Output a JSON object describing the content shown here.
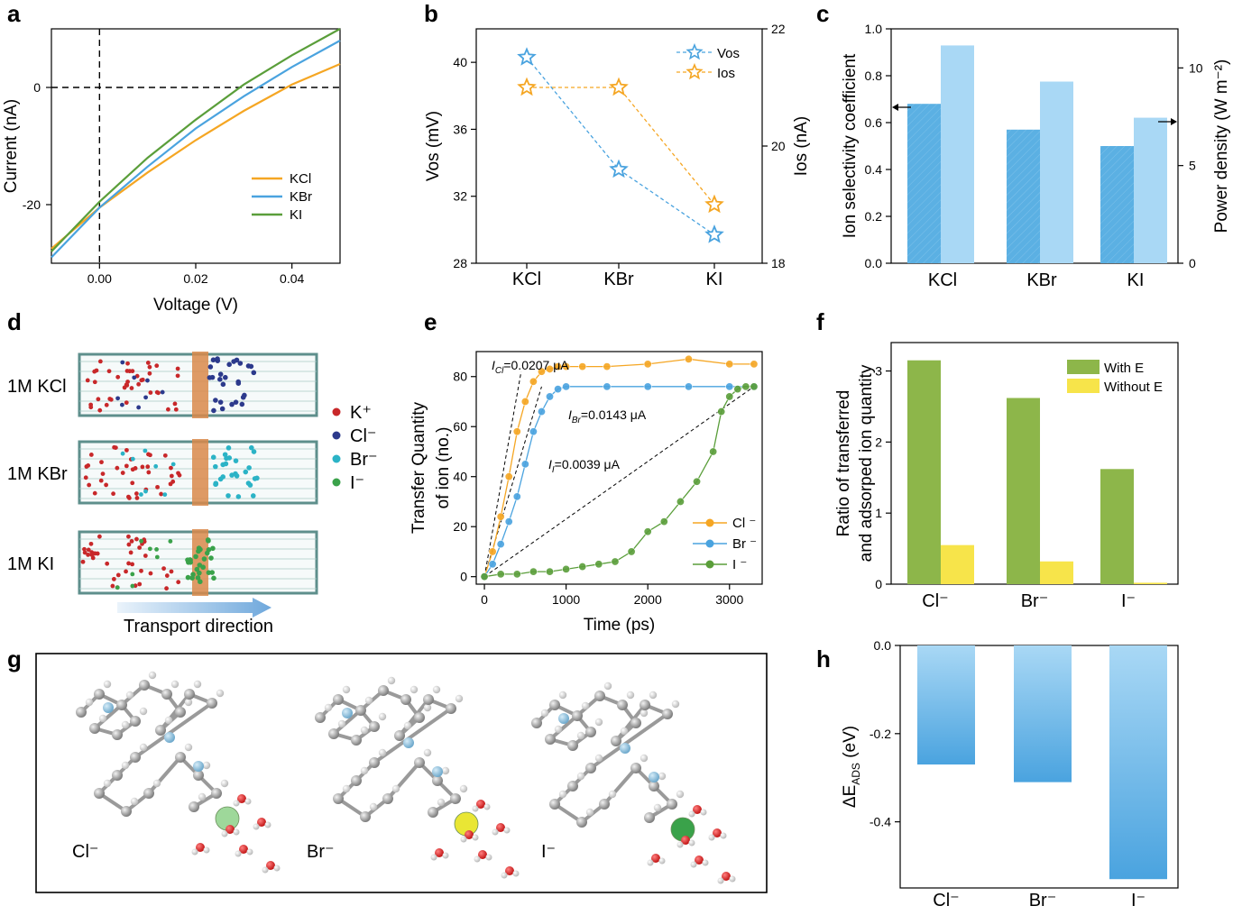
{
  "panel_labels": [
    "a",
    "b",
    "c",
    "d",
    "e",
    "f",
    "g",
    "h"
  ],
  "chart_data": [
    {
      "panel": "a",
      "type": "line",
      "xlabel": "Voltage (V)",
      "ylabel": "Current (nA)",
      "xlim": [
        -0.01,
        0.05
      ],
      "ylim": [
        -30,
        10
      ],
      "xticks": [
        "0.00",
        "0.02",
        "0.04"
      ],
      "yticks": [
        "-20",
        "0"
      ],
      "series": [
        {
          "name": "KCl",
          "color": "#f5a623",
          "x": [
            -0.01,
            0,
            0.01,
            0.02,
            0.03,
            0.04,
            0.05
          ],
          "y": [
            -27.5,
            -20.5,
            -14.5,
            -9,
            -4,
            0.5,
            4
          ]
        },
        {
          "name": "KBr",
          "color": "#4aa3df",
          "x": [
            -0.01,
            0,
            0.01,
            0.02,
            0.03,
            0.04,
            0.05
          ],
          "y": [
            -29,
            -20.5,
            -13.5,
            -7,
            -1.5,
            3.5,
            8
          ]
        },
        {
          "name": "KI",
          "color": "#5a9e3a",
          "x": [
            -0.01,
            0,
            0.01,
            0.02,
            0.03,
            0.04,
            0.05
          ],
          "y": [
            -28,
            -19.5,
            -12,
            -5.5,
            0.5,
            5.5,
            10
          ]
        }
      ]
    },
    {
      "panel": "b",
      "type": "line",
      "categories": [
        "KCl",
        "KBr",
        "KI"
      ],
      "ylabel": "Vos (mV)",
      "y2label": "Ios (nA)",
      "ylim": [
        28,
        42
      ],
      "y2lim": [
        18,
        22
      ],
      "yticks": [
        "28",
        "32",
        "36",
        "40"
      ],
      "y2ticks": [
        "18",
        "20",
        "22"
      ],
      "series": [
        {
          "name": "Vos",
          "axis": "left",
          "color": "#4aa3df",
          "values": [
            40.3,
            33.6,
            29.7
          ]
        },
        {
          "name": "Ios",
          "axis": "right",
          "color": "#f5a623",
          "values": [
            21.0,
            21.0,
            19.0
          ]
        }
      ]
    },
    {
      "panel": "c",
      "type": "bar",
      "categories": [
        "KCl",
        "KBr",
        "KI"
      ],
      "ylabel": "Ion selectivity coefficient",
      "y2label": "Power density (W m⁻²)",
      "ylim": [
        0,
        1.0
      ],
      "y2lim": [
        0,
        12
      ],
      "yticks": [
        "0.0",
        "0.2",
        "0.4",
        "0.6",
        "0.8",
        "1.0"
      ],
      "y2ticks": [
        "0",
        "5",
        "10"
      ],
      "series": [
        {
          "name": "Ion selectivity coefficient",
          "axis": "left",
          "color": "#5bb0e3",
          "values": [
            0.68,
            0.57,
            0.5
          ]
        },
        {
          "name": "Power density",
          "axis": "right",
          "color": "#a9d8f5",
          "values": [
            11.15,
            9.3,
            7.45
          ]
        }
      ]
    },
    {
      "panel": "e",
      "type": "scatter",
      "xlabel": "Time (ps)",
      "ylabel": "Transfer Quantity of ion (no.)",
      "xlim": [
        -100,
        3400
      ],
      "ylim": [
        -3,
        90
      ],
      "xticks": [
        "0",
        "1000",
        "2000",
        "3000"
      ],
      "yticks": [
        "0",
        "20",
        "40",
        "60",
        "80"
      ],
      "annotations": [
        "Cl",
        "=0.0207 μA",
        "Br",
        "=0.0143 μA",
        "I",
        "=0.0039 μA"
      ],
      "series": [
        {
          "name": "Cl ⁻",
          "color": "#f5a623",
          "x": [
            0,
            100,
            200,
            300,
            400,
            500,
            600,
            700,
            800,
            900,
            1000,
            1200,
            1500,
            2000,
            2500,
            3000,
            3300
          ],
          "y": [
            0,
            10,
            24,
            40,
            58,
            70,
            78,
            82,
            83,
            84,
            84,
            84,
            84,
            85,
            87,
            85,
            85
          ]
        },
        {
          "name": "Br ⁻",
          "color": "#4aa3df",
          "x": [
            0,
            100,
            200,
            300,
            400,
            500,
            600,
            700,
            800,
            900,
            1000,
            1500,
            2000,
            2500,
            3000,
            3300
          ],
          "y": [
            0,
            5,
            13,
            22,
            32,
            45,
            58,
            66,
            72,
            75,
            76,
            76,
            76,
            76,
            76,
            76
          ]
        },
        {
          "name": "I ⁻",
          "color": "#5a9e3a",
          "x": [
            0,
            200,
            400,
            600,
            800,
            1000,
            1200,
            1400,
            1600,
            1800,
            2000,
            2200,
            2400,
            2600,
            2800,
            2900,
            3000,
            3100,
            3200,
            3300
          ],
          "y": [
            0,
            1,
            1,
            2,
            2,
            3,
            4,
            5,
            6,
            10,
            18,
            22,
            30,
            38,
            50,
            66,
            72,
            75,
            76,
            76
          ]
        }
      ]
    },
    {
      "panel": "f",
      "type": "bar",
      "categories": [
        "Cl⁻",
        "Br⁻",
        "I⁻"
      ],
      "ylabel": "Ratio of transferred and adsorped ion quantity",
      "ylim": [
        0,
        3.4
      ],
      "yticks": [
        "0",
        "1",
        "2",
        "3"
      ],
      "series": [
        {
          "name": "With E",
          "color": "#8db64a",
          "values": [
            3.15,
            2.62,
            1.62
          ]
        },
        {
          "name": "Without E",
          "color": "#f7e44a",
          "values": [
            0.55,
            0.32,
            0.02
          ]
        }
      ]
    },
    {
      "panel": "h",
      "type": "bar",
      "categories": [
        "Cl⁻",
        "Br⁻",
        "I⁻"
      ],
      "ylabel": "ΔE",
      "ylabel_sub": "ADS",
      "ylabel_unit": " (eV)",
      "ylim": [
        -0.55,
        0.0
      ],
      "yticks": [
        "0.0",
        "-0.2",
        "-0.4"
      ],
      "values": [
        -0.27,
        -0.31,
        -0.53
      ],
      "color_top": "#a9d8f5",
      "color_bottom": "#4aa3df"
    }
  ],
  "panel_d": {
    "rows": [
      "1M KCl",
      "1M KBr",
      "1M KI"
    ],
    "legend": [
      {
        "label": "K⁺",
        "color": "#c8282a"
      },
      {
        "label": "Cl⁻",
        "color": "#2c3a8c"
      },
      {
        "label": "Br⁻",
        "color": "#2bb3c6"
      },
      {
        "label": "I⁻",
        "color": "#3aa24a"
      }
    ],
    "arrow_label": "Transport direction"
  },
  "panel_g": {
    "ions": [
      {
        "label": "Cl⁻",
        "color": "#9ed89a"
      },
      {
        "label": "Br⁻",
        "color": "#e9e634"
      },
      {
        "label": "I⁻",
        "color": "#3aa24a"
      }
    ]
  }
}
